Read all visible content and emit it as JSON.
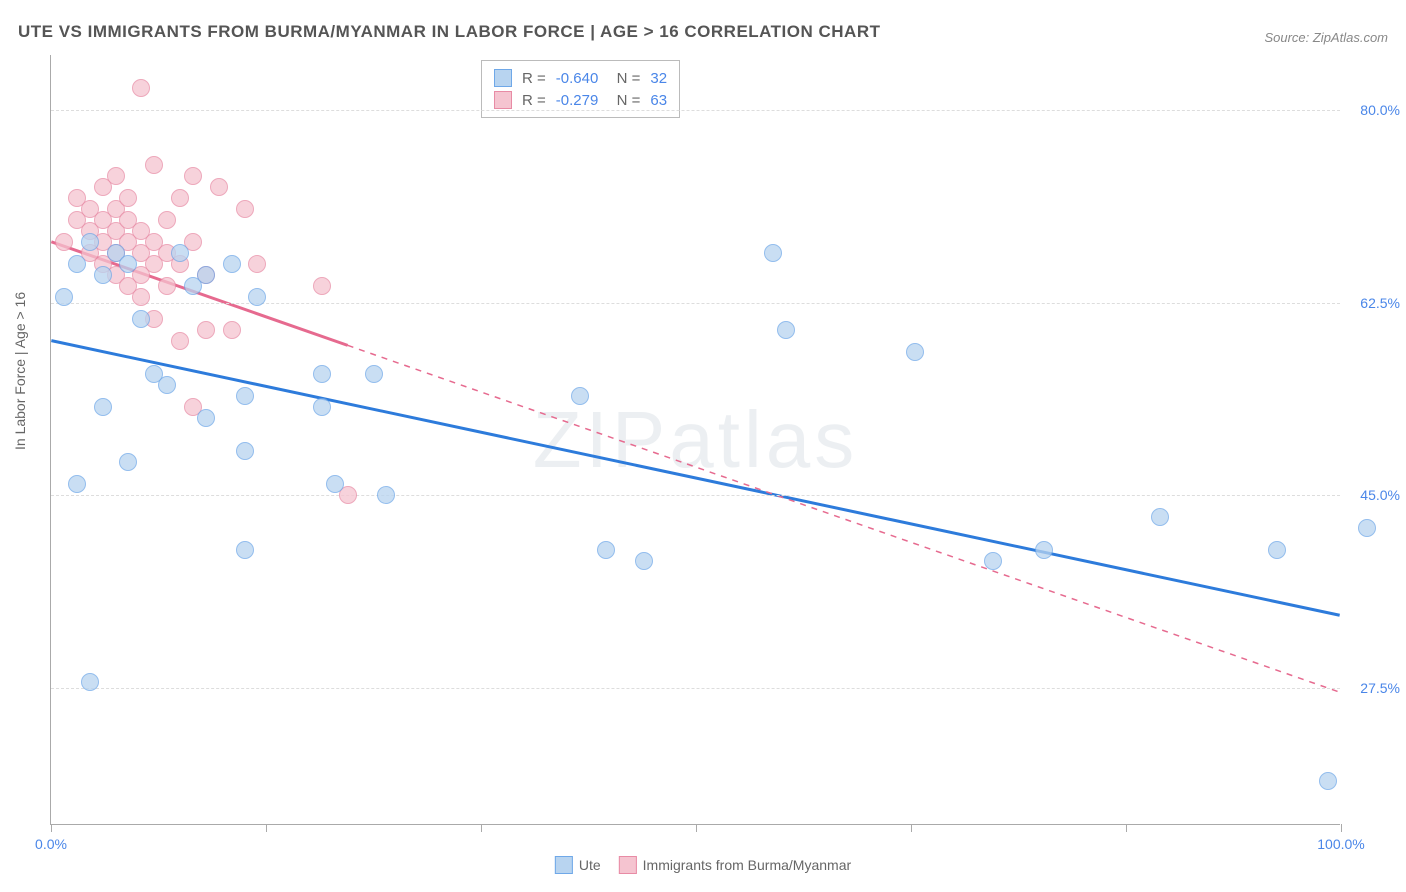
{
  "title": "UTE VS IMMIGRANTS FROM BURMA/MYANMAR IN LABOR FORCE | AGE > 16 CORRELATION CHART",
  "source": "Source: ZipAtlas.com",
  "watermark": "ZIPatlas",
  "y_label": "In Labor Force | Age > 16",
  "chart": {
    "type": "scatter",
    "xlim": [
      0,
      100
    ],
    "ylim": [
      15,
      85
    ],
    "x_ticks": [
      0,
      16.67,
      33.33,
      50,
      66.67,
      83.33,
      100
    ],
    "x_tick_labels": {
      "0": "0.0%",
      "100": "100.0%"
    },
    "y_gridlines": [
      27.5,
      45.0,
      62.5,
      80.0
    ],
    "y_tick_labels": [
      "27.5%",
      "45.0%",
      "62.5%",
      "80.0%"
    ],
    "background_color": "#ffffff",
    "grid_color": "#dddddd",
    "axis_color": "#aaaaaa",
    "label_color": "#4a86e8",
    "series": [
      {
        "name": "Ute",
        "color_fill": "#b8d4f0",
        "color_stroke": "#6fa8e8",
        "trend_color": "#2d7bdb",
        "R": "-0.640",
        "N": "32",
        "trend": {
          "x1": 0,
          "y1": 59,
          "x2": 100,
          "y2": 34,
          "solid_until_x": 100
        },
        "points": [
          [
            1,
            63
          ],
          [
            2,
            66
          ],
          [
            3,
            68
          ],
          [
            4,
            65
          ],
          [
            5,
            67
          ],
          [
            6,
            66
          ],
          [
            7,
            61
          ],
          [
            8,
            56
          ],
          [
            9,
            55
          ],
          [
            4,
            53
          ],
          [
            6,
            48
          ],
          [
            2,
            46
          ],
          [
            3,
            28
          ],
          [
            10,
            67
          ],
          [
            11,
            64
          ],
          [
            12,
            65
          ],
          [
            12,
            52
          ],
          [
            14,
            66
          ],
          [
            16,
            63
          ],
          [
            15,
            54
          ],
          [
            15,
            49
          ],
          [
            15,
            40
          ],
          [
            21,
            56
          ],
          [
            21,
            53
          ],
          [
            22,
            46
          ],
          [
            25,
            56
          ],
          [
            26,
            45
          ],
          [
            41,
            54
          ],
          [
            43,
            40
          ],
          [
            46,
            39
          ],
          [
            56,
            67
          ],
          [
            57,
            60
          ],
          [
            67,
            58
          ],
          [
            73,
            39
          ],
          [
            77,
            40
          ],
          [
            86,
            43
          ],
          [
            95,
            40
          ],
          [
            99,
            19
          ],
          [
            102,
            42
          ]
        ]
      },
      {
        "name": "Immigrants from Burma/Myanmar",
        "color_fill": "#f5c4d0",
        "color_stroke": "#e88ba5",
        "trend_color": "#e66a8f",
        "R": "-0.279",
        "N": "63",
        "trend": {
          "x1": 0,
          "y1": 68,
          "x2": 100,
          "y2": 27,
          "solid_until_x": 23
        },
        "points": [
          [
            1,
            68
          ],
          [
            2,
            70
          ],
          [
            2,
            72
          ],
          [
            3,
            67
          ],
          [
            3,
            69
          ],
          [
            3,
            71
          ],
          [
            4,
            73
          ],
          [
            4,
            68
          ],
          [
            4,
            66
          ],
          [
            4,
            70
          ],
          [
            5,
            65
          ],
          [
            5,
            69
          ],
          [
            5,
            71
          ],
          [
            5,
            74
          ],
          [
            5,
            67
          ],
          [
            6,
            68
          ],
          [
            6,
            70
          ],
          [
            6,
            64
          ],
          [
            6,
            72
          ],
          [
            7,
            63
          ],
          [
            7,
            65
          ],
          [
            7,
            67
          ],
          [
            7,
            69
          ],
          [
            7,
            82
          ],
          [
            8,
            66
          ],
          [
            8,
            68
          ],
          [
            8,
            61
          ],
          [
            8,
            75
          ],
          [
            9,
            64
          ],
          [
            9,
            67
          ],
          [
            9,
            70
          ],
          [
            10,
            66
          ],
          [
            10,
            72
          ],
          [
            10,
            59
          ],
          [
            11,
            68
          ],
          [
            11,
            53
          ],
          [
            11,
            74
          ],
          [
            12,
            65
          ],
          [
            12,
            60
          ],
          [
            13,
            73
          ],
          [
            14,
            60
          ],
          [
            15,
            71
          ],
          [
            16,
            66
          ],
          [
            21,
            64
          ],
          [
            23,
            45
          ]
        ]
      }
    ],
    "legend_bottom": [
      "Ute",
      "Immigrants from Burma/Myanmar"
    ]
  }
}
